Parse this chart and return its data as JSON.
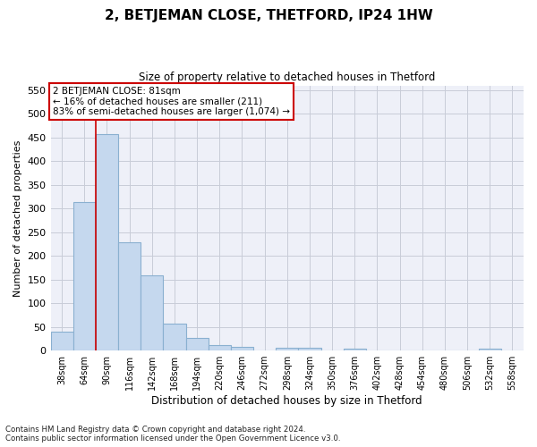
{
  "title": "2, BETJEMAN CLOSE, THETFORD, IP24 1HW",
  "subtitle": "Size of property relative to detached houses in Thetford",
  "xlabel": "Distribution of detached houses by size in Thetford",
  "ylabel": "Number of detached properties",
  "categories": [
    "38sqm",
    "64sqm",
    "90sqm",
    "116sqm",
    "142sqm",
    "168sqm",
    "194sqm",
    "220sqm",
    "246sqm",
    "272sqm",
    "298sqm",
    "324sqm",
    "350sqm",
    "376sqm",
    "402sqm",
    "428sqm",
    "454sqm",
    "480sqm",
    "506sqm",
    "532sqm",
    "558sqm"
  ],
  "values": [
    40,
    313,
    458,
    228,
    158,
    57,
    27,
    11,
    8,
    0,
    5,
    5,
    0,
    3,
    0,
    0,
    0,
    0,
    0,
    3,
    0
  ],
  "bar_color": "#c5d8ee",
  "bar_edge_color": "#8ab0d0",
  "plot_bg_color": "#eef0f8",
  "fig_bg_color": "#ffffff",
  "grid_color": "#c8ccd8",
  "annotation_text": "2 BETJEMAN CLOSE: 81sqm\n← 16% of detached houses are smaller (211)\n83% of semi-detached houses are larger (1,074) →",
  "annotation_box_color": "#ffffff",
  "annotation_box_edge_color": "#cc0000",
  "red_line_x": 90,
  "ylim": [
    0,
    560
  ],
  "yticks": [
    0,
    50,
    100,
    150,
    200,
    250,
    300,
    350,
    400,
    450,
    500,
    550
  ],
  "bin_width": 26,
  "bin_starts": [
    38,
    64,
    90,
    116,
    142,
    168,
    194,
    220,
    246,
    272,
    298,
    324,
    350,
    376,
    402,
    428,
    454,
    480,
    506,
    532,
    558
  ],
  "footer": "Contains HM Land Registry data © Crown copyright and database right 2024.\nContains public sector information licensed under the Open Government Licence v3.0."
}
